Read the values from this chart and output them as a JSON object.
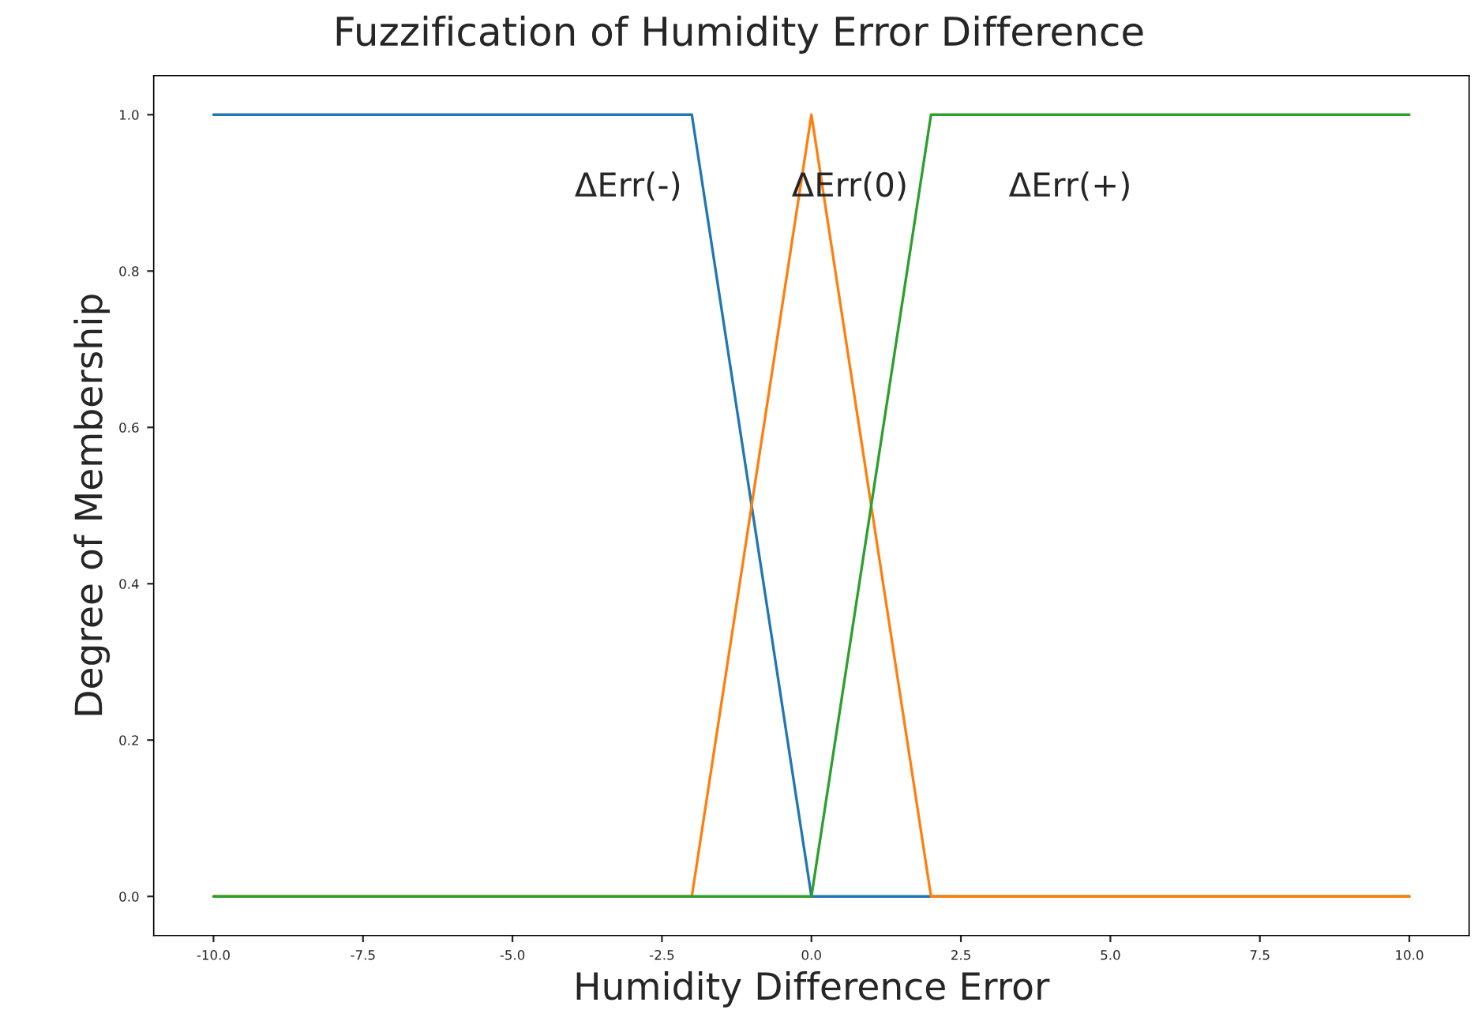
{
  "chart_data": {
    "type": "line",
    "title": "Fuzzification of Humidity Error Difference",
    "xlabel": "Humidity Difference Error",
    "ylabel": "Degree of Membership",
    "series": [
      {
        "name": "ΔErr(-)",
        "color": "#1f77b4",
        "x": [
          -10,
          -2,
          0,
          10
        ],
        "values": [
          1,
          1,
          0,
          0
        ]
      },
      {
        "name": "ΔErr(0)",
        "color": "#ff7f0e",
        "x": [
          -10,
          -2,
          0,
          2,
          10
        ],
        "values": [
          0,
          0,
          1,
          0,
          0
        ]
      },
      {
        "name": "ΔErr(+)",
        "color": "#2ca02c",
        "x": [
          -10,
          0,
          2,
          10
        ],
        "values": [
          0,
          0,
          1,
          1
        ]
      }
    ],
    "xlim": [
      -11,
      11
    ],
    "ylim": [
      -0.05,
      1.05
    ],
    "xticks": [
      {
        "value": -10,
        "label": "-10.0"
      },
      {
        "value": -7.5,
        "label": "-7.5"
      },
      {
        "value": -5,
        "label": "-5.0"
      },
      {
        "value": -2.5,
        "label": "-2.5"
      },
      {
        "value": 0,
        "label": "0.0"
      },
      {
        "value": 2.5,
        "label": "2.5"
      },
      {
        "value": 5,
        "label": "5.0"
      },
      {
        "value": 7.5,
        "label": "7.5"
      },
      {
        "value": 10,
        "label": "10.0"
      }
    ],
    "yticks": [
      {
        "value": 0,
        "label": "0.0"
      },
      {
        "value": 0.2,
        "label": "0.2"
      },
      {
        "value": 0.4,
        "label": "0.4"
      },
      {
        "value": 0.6,
        "label": "0.6"
      },
      {
        "value": 0.8,
        "label": "0.8"
      },
      {
        "value": 1,
        "label": "1.0"
      }
    ],
    "grid": false,
    "legend": false
  }
}
